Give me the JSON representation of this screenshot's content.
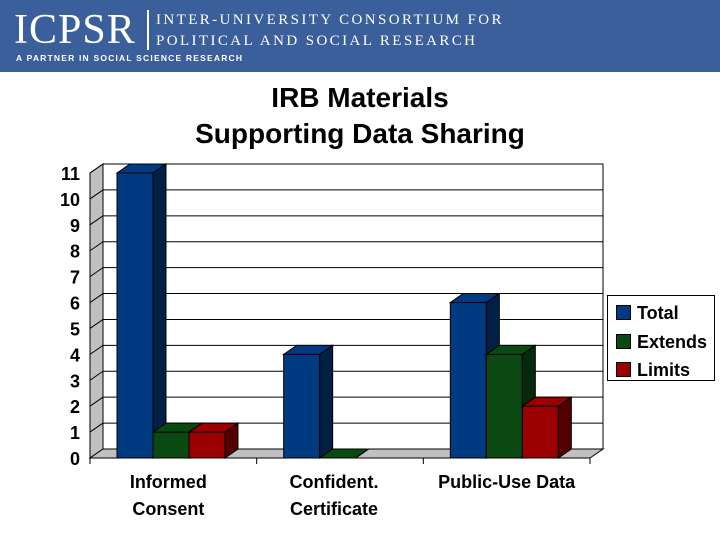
{
  "header": {
    "logo_text": "ICPSR",
    "org_line1": "INTER-UNIVERSITY CONSORTIUM FOR",
    "org_line2": "POLITICAL AND SOCIAL RESEARCH",
    "tagline": "A PARTNER IN SOCIAL SCIENCE RESEARCH"
  },
  "colors": {
    "banner": "#3a5f9a",
    "total": "#003a80",
    "extends": "#0a4a12",
    "limits": "#9a0000"
  },
  "chart_data": {
    "type": "bar",
    "title": "IRB Materials Supporting Data Sharing",
    "title_lines": [
      "IRB Materials",
      "Supporting Data Sharing"
    ],
    "categories": [
      "Informed Consent",
      "Confident. Certificate",
      "Public-Use Data"
    ],
    "category_lines": [
      [
        "Informed",
        "Consent"
      ],
      [
        "Confident.",
        "Certificate"
      ],
      [
        "Public-Use Data"
      ]
    ],
    "series": [
      {
        "name": "Total",
        "values": [
          11,
          4,
          6
        ]
      },
      {
        "name": "Extends",
        "values": [
          1,
          0,
          4
        ]
      },
      {
        "name": "Limits",
        "values": [
          1,
          null,
          2
        ]
      }
    ],
    "ylim": [
      0,
      11
    ],
    "yticks": [
      0,
      1,
      2,
      3,
      4,
      5,
      6,
      7,
      8,
      9,
      10,
      11
    ],
    "grid": true,
    "legend_position": "right",
    "xlabel": "",
    "ylabel": ""
  }
}
